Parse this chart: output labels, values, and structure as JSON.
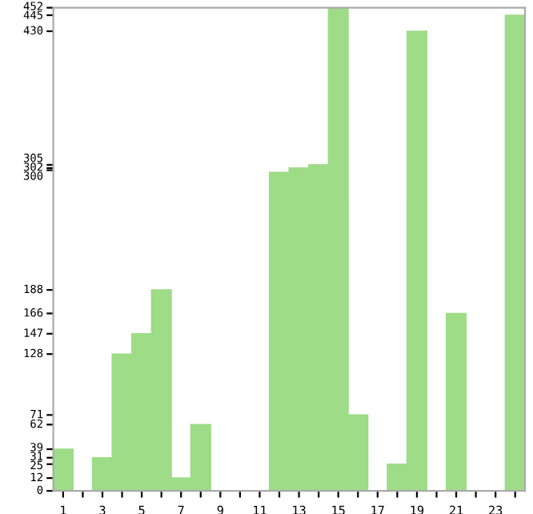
{
  "chart_data": {
    "type": "bar",
    "categories": [
      "1",
      null,
      "3",
      null,
      "5",
      null,
      "7",
      null,
      "9",
      null,
      "11",
      null,
      "13",
      null,
      "15",
      null,
      "17",
      null,
      "19",
      null,
      "21",
      null,
      "23",
      null
    ],
    "values": [
      39,
      0,
      31,
      128,
      147,
      188,
      12,
      62,
      0,
      0,
      0,
      298,
      302,
      305,
      452,
      71,
      0,
      25,
      430,
      0,
      166,
      0,
      0,
      445
    ],
    "color": "#9edc88",
    "ylim": [
      0,
      452
    ],
    "yticks": [
      0,
      12,
      25,
      31,
      39,
      62,
      71,
      128,
      147,
      166,
      188,
      300,
      302,
      305,
      430,
      445,
      452
    ],
    "grid": false
  }
}
